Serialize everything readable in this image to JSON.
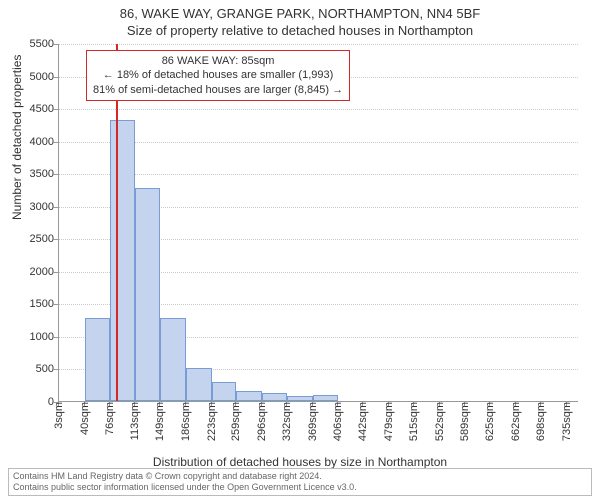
{
  "title_main": "86, WAKE WAY, GRANGE PARK, NORTHAMPTON, NN4 5BF",
  "title_sub": "Size of property relative to detached houses in Northampton",
  "y_axis_label": "Number of detached properties",
  "x_axis_label": "Distribution of detached houses by size in Northampton",
  "chart": {
    "type": "histogram",
    "background_color": "#ffffff",
    "grid_color": "#cccccc",
    "axis_color": "#999999",
    "bar_fill": "#c4d4ee",
    "bar_border": "#7a9cd4",
    "marker_color": "#d22828",
    "xlim": [
      3,
      753
    ],
    "ylim": [
      0,
      5500
    ],
    "y_ticks": [
      0,
      500,
      1000,
      1500,
      2000,
      2500,
      3000,
      3500,
      4000,
      4500,
      5000,
      5500
    ],
    "x_ticks": [
      3,
      40,
      76,
      113,
      149,
      186,
      223,
      259,
      296,
      332,
      369,
      406,
      442,
      479,
      515,
      552,
      589,
      625,
      662,
      698,
      735
    ],
    "x_tick_suffix": "sqm",
    "bars": [
      {
        "x0": 40,
        "x1": 76,
        "y": 1280
      },
      {
        "x0": 76,
        "x1": 113,
        "y": 4320
      },
      {
        "x0": 113,
        "x1": 149,
        "y": 3280
      },
      {
        "x0": 149,
        "x1": 186,
        "y": 1280
      },
      {
        "x0": 186,
        "x1": 223,
        "y": 500
      },
      {
        "x0": 223,
        "x1": 259,
        "y": 290
      },
      {
        "x0": 259,
        "x1": 296,
        "y": 160
      },
      {
        "x0": 296,
        "x1": 332,
        "y": 120
      },
      {
        "x0": 332,
        "x1": 369,
        "y": 80
      },
      {
        "x0": 369,
        "x1": 406,
        "y": 100
      }
    ],
    "marker_x": 85,
    "label_fontsize": 12,
    "tick_fontsize": 11,
    "title_fontsize": 13
  },
  "annotation": {
    "lines": [
      "86 WAKE WAY: 85sqm",
      "← 18% of detached houses are smaller (1,993)",
      "81% of semi-detached houses are larger (8,845) →"
    ],
    "border_color": "#d22828",
    "background_color": "#ffffff",
    "fontsize": 11
  },
  "footer": {
    "line1": "Contains HM Land Registry data © Crown copyright and database right 2024.",
    "line2": "Contains public sector information licensed under the Open Government Licence v3.0.",
    "border_color": "#bbbbbb",
    "text_color": "#666666",
    "fontsize": 9
  }
}
